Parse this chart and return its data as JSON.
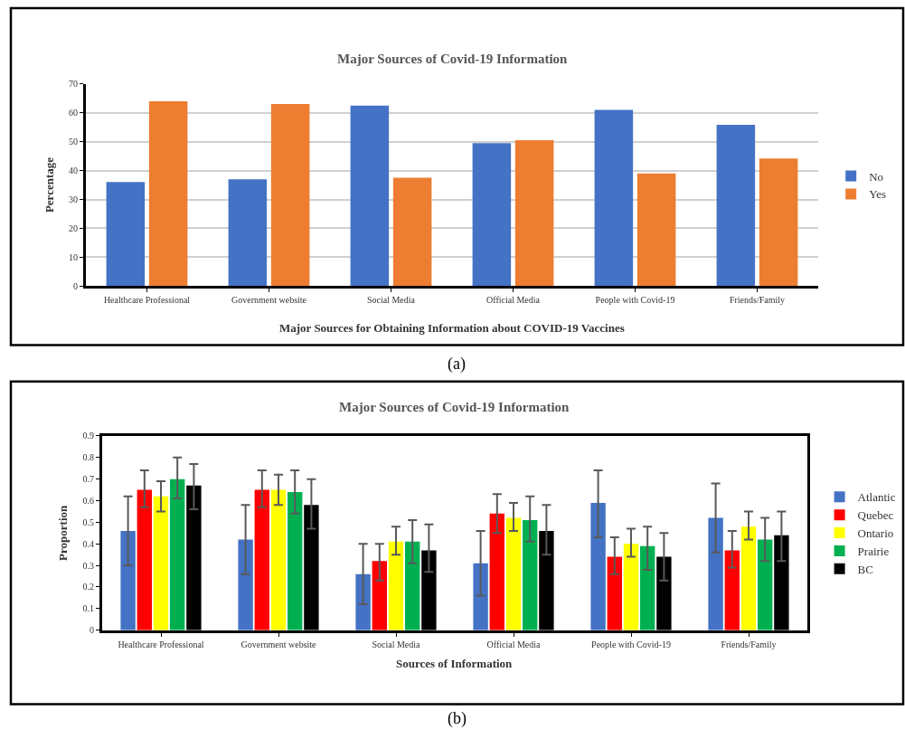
{
  "chart_data": [
    {
      "type": "bar",
      "title": "Major Sources of Covid-19 Information",
      "xlabel": "Major Sources for Obtaining Information about COVID-19 Vaccines",
      "ylabel": "Percentage",
      "categories": [
        "Healthcare Professional",
        "Government website",
        "Social Media",
        "Official Media",
        "People with Covid-19",
        "Friends/Family"
      ],
      "series": [
        {
          "name": "No",
          "color": "#4472c4",
          "values": [
            36,
            37,
            62.5,
            49.5,
            61,
            55.8
          ]
        },
        {
          "name": "Yes",
          "color": "#ed7d31",
          "values": [
            64,
            63,
            37.5,
            50.5,
            39,
            44.2
          ]
        }
      ],
      "ylim": [
        0,
        70
      ],
      "yticks": [
        0,
        10,
        20,
        30,
        40,
        50,
        60,
        70
      ],
      "grid": "y",
      "legend": "right",
      "annotations": [
        "(a)"
      ]
    },
    {
      "type": "bar",
      "title": "Major Sources of Covid-19 Information",
      "xlabel": "Sources of Information",
      "ylabel": "Proportion",
      "categories": [
        "Healthcare Professional",
        "Government website",
        "Social Media",
        "Official Media",
        "People with Covid-19",
        "Friends/Family"
      ],
      "series": [
        {
          "name": "Atlantic",
          "color": "#4472c4",
          "values": [
            0.46,
            0.42,
            0.26,
            0.31,
            0.59,
            0.52
          ],
          "errors": [
            [
              0.3,
              0.62
            ],
            [
              0.26,
              0.58
            ],
            [
              0.12,
              0.4
            ],
            [
              0.16,
              0.46
            ],
            [
              0.43,
              0.74
            ],
            [
              0.36,
              0.68
            ]
          ]
        },
        {
          "name": "Quebec",
          "color": "#ff0000",
          "values": [
            0.65,
            0.65,
            0.32,
            0.54,
            0.34,
            0.37
          ],
          "errors": [
            [
              0.57,
              0.74
            ],
            [
              0.57,
              0.74
            ],
            [
              0.23,
              0.4
            ],
            [
              0.45,
              0.63
            ],
            [
              0.26,
              0.43
            ],
            [
              0.29,
              0.46
            ]
          ]
        },
        {
          "name": "Ontario",
          "color": "#ffff00",
          "values": [
            0.62,
            0.65,
            0.41,
            0.52,
            0.4,
            0.48
          ],
          "errors": [
            [
              0.55,
              0.69
            ],
            [
              0.58,
              0.72
            ],
            [
              0.35,
              0.48
            ],
            [
              0.46,
              0.59
            ],
            [
              0.34,
              0.47
            ],
            [
              0.42,
              0.55
            ]
          ]
        },
        {
          "name": "Prairie",
          "color": "#00b050",
          "values": [
            0.7,
            0.64,
            0.41,
            0.51,
            0.39,
            0.42
          ],
          "errors": [
            [
              0.61,
              0.8
            ],
            [
              0.54,
              0.74
            ],
            [
              0.31,
              0.51
            ],
            [
              0.41,
              0.62
            ],
            [
              0.28,
              0.48
            ],
            [
              0.32,
              0.52
            ]
          ]
        },
        {
          "name": "BC",
          "color": "#000000",
          "values": [
            0.67,
            0.58,
            0.37,
            0.46,
            0.34,
            0.44
          ],
          "errors": [
            [
              0.56,
              0.77
            ],
            [
              0.47,
              0.7
            ],
            [
              0.27,
              0.49
            ],
            [
              0.35,
              0.58
            ],
            [
              0.23,
              0.45
            ],
            [
              0.32,
              0.55
            ]
          ]
        }
      ],
      "ylim": [
        0,
        0.9
      ],
      "yticks": [
        0,
        0.1,
        0.2,
        0.3,
        0.4,
        0.5,
        0.6,
        0.7,
        0.8,
        0.9
      ],
      "grid": false,
      "legend": "right",
      "annotations": [
        "(b)"
      ]
    }
  ]
}
